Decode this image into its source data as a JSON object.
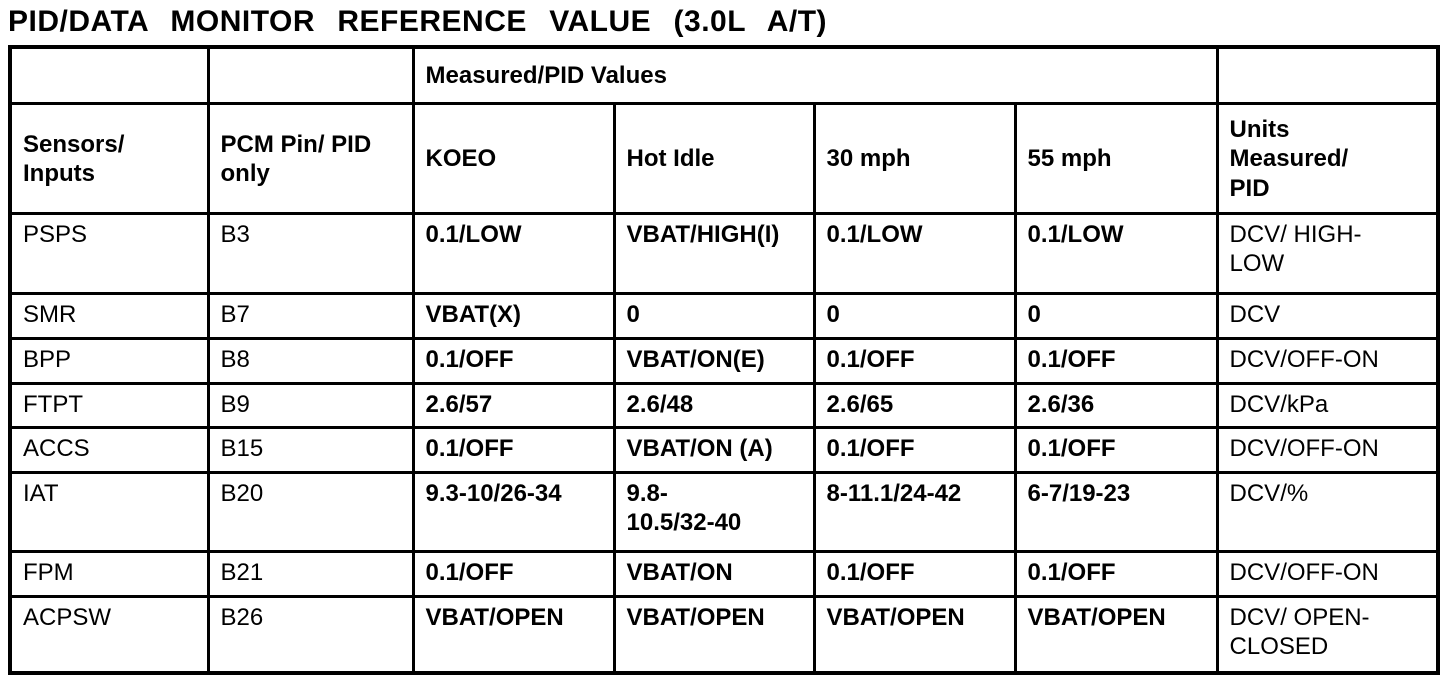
{
  "title": "PID/DATA MONITOR REFERENCE VALUE (3.0L A/T)",
  "table": {
    "group_header": "Measured/PID Values",
    "headers": {
      "sensors": "Sensors/\nInputs",
      "pin": "PCM Pin/ PID\nonly",
      "koeo": "KOEO",
      "hot_idle": "Hot Idle",
      "mph30": "30 mph",
      "mph55": "55 mph",
      "units": "Units\nMeasured/\nPID"
    },
    "rows": [
      {
        "sensor": "PSPS",
        "pin": "B3",
        "koeo": "0.1/LOW",
        "hot_idle": "VBAT/HIGH(I)",
        "mph30": "0.1/LOW",
        "mph55": "0.1/LOW",
        "units": "DCV/ HIGH-\nLOW"
      },
      {
        "sensor": "SMR",
        "pin": "B7",
        "koeo": "VBAT(X)",
        "hot_idle": "0",
        "mph30": "0",
        "mph55": "0",
        "units": "DCV"
      },
      {
        "sensor": "BPP",
        "pin": "B8",
        "koeo": "0.1/OFF",
        "hot_idle": "VBAT/ON(E)",
        "mph30": "0.1/OFF",
        "mph55": "0.1/OFF",
        "units": "DCV/OFF-ON"
      },
      {
        "sensor": "FTPT",
        "pin": "B9",
        "koeo": "2.6/57",
        "hot_idle": "2.6/48",
        "mph30": "2.6/65",
        "mph55": "2.6/36",
        "units": "DCV/kPa"
      },
      {
        "sensor": "ACCS",
        "pin": "B15",
        "koeo": "0.1/OFF",
        "hot_idle": "VBAT/ON (A)",
        "mph30": "0.1/OFF",
        "mph55": "0.1/OFF",
        "units": "DCV/OFF-ON"
      },
      {
        "sensor": "IAT",
        "pin": "B20",
        "koeo": "9.3-10/26-34",
        "hot_idle": "9.8-\n10.5/32-40",
        "mph30": "8-11.1/24-42",
        "mph55": "6-7/19-23",
        "units": "DCV/%"
      },
      {
        "sensor": "FPM",
        "pin": "B21",
        "koeo": "0.1/OFF",
        "hot_idle": "VBAT/ON",
        "mph30": "0.1/OFF",
        "mph55": "0.1/OFF",
        "units": "DCV/OFF-ON"
      },
      {
        "sensor": "ACPSW",
        "pin": "B26",
        "koeo": "VBAT/OPEN",
        "hot_idle": "VBAT/OPEN",
        "mph30": "VBAT/OPEN",
        "mph55": "VBAT/OPEN",
        "units": "DCV/ OPEN-\nCLOSED"
      }
    ]
  }
}
